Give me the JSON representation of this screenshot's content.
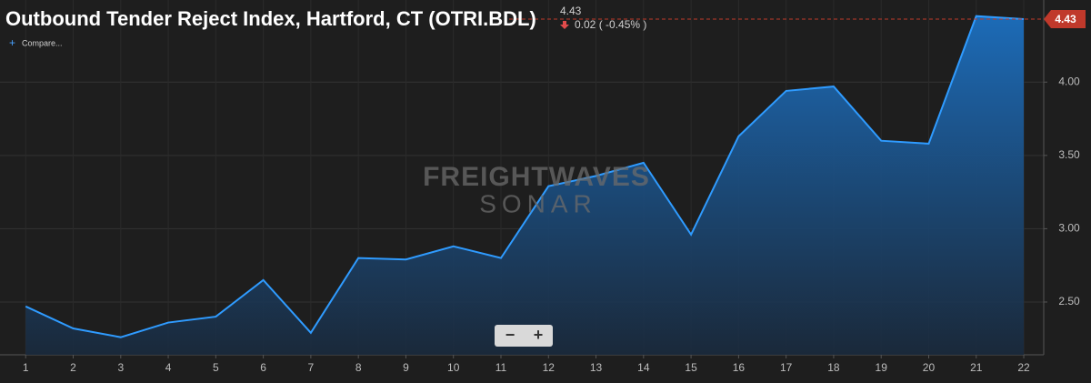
{
  "chart_data": {
    "type": "area",
    "title": "Outbound Tender Reject Index, Hartford, CT (OTRI.BDL)",
    "compare_label": "Compare...",
    "change_label": "0.02 ( -0.45% )",
    "watermark": [
      "FREIGHTWAVES",
      "SONAR"
    ],
    "zoom_controls": [
      "−",
      "+"
    ],
    "x": [
      1,
      2,
      3,
      4,
      5,
      6,
      7,
      8,
      9,
      10,
      11,
      12,
      13,
      14,
      15,
      16,
      17,
      18,
      19,
      20,
      21,
      22
    ],
    "series": [
      {
        "name": "OTRI.BDL",
        "color": "#2f9bff",
        "values": [
          2.47,
          2.32,
          2.26,
          2.36,
          2.4,
          2.65,
          2.29,
          2.8,
          2.79,
          2.88,
          2.8,
          3.29,
          3.36,
          3.45,
          2.96,
          3.63,
          3.94,
          3.97,
          3.6,
          3.58,
          4.45,
          4.43
        ]
      }
    ],
    "xlim": [
      0.46,
      22.42
    ],
    "xticks": [
      1,
      2,
      3,
      4,
      5,
      6,
      7,
      8,
      9,
      10,
      11,
      12,
      13,
      14,
      15,
      16,
      17,
      18,
      19,
      20,
      21,
      22
    ],
    "ylim": [
      2.14,
      4.56
    ],
    "yticks": [
      {
        "value": 2.5,
        "label": "2.50"
      },
      {
        "value": 3,
        "label": "3.00"
      },
      {
        "value": 3.5,
        "label": "3.50"
      },
      {
        "value": 4,
        "label": "4.00"
      }
    ],
    "grid": true
  }
}
